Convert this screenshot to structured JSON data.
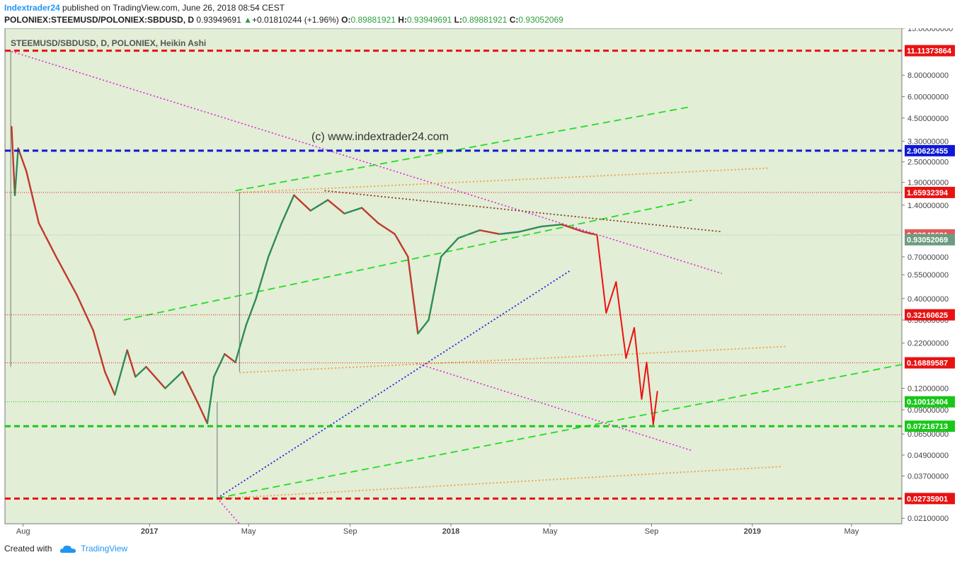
{
  "header": {
    "author": "Indextrader24",
    "published_text": "published on TradingView.com, June 26, 2018 08:54 CEST",
    "symbol": "POLONIEX:STEEMUSD/POLONIEX:SBDUSD, D",
    "last": "0.93949691",
    "change_arrow": "▲",
    "change": "+0.01810244 (+1.96%)",
    "o_label": "O:",
    "o": "0.89881921",
    "h_label": "H:",
    "h": "0.93949691",
    "l_label": "L:",
    "l": "0.89881921",
    "c_label": "C:",
    "c": "0.93052069"
  },
  "footer": {
    "created_with": "Created with",
    "brand": "TradingView"
  },
  "chart_data": {
    "type": "candlestick",
    "title": "STEEMUSD/SBDUSD, D, POLONIEX, Heikin Ashi",
    "watermark": "(c) www.indextrader24.com",
    "y_scale": "log",
    "ylim": [
      0.0195,
      15.0
    ],
    "xlim": [
      "2016-07-10",
      "2019-07-01"
    ],
    "y_ticks": [
      "15.00000000",
      "8.00000000",
      "6.00000000",
      "4.50000000",
      "3.30000000",
      "2.50000000",
      "1.90000000",
      "1.40000000",
      "0.70000000",
      "0.55000000",
      "0.40000000",
      "0.30000000",
      "0.22000000",
      "0.12000000",
      "0.09000000",
      "0.06500000",
      "0.04900000",
      "0.03700000",
      "0.02100000"
    ],
    "x_ticks": [
      {
        "label": "Aug",
        "date": "2016-08-01",
        "bold": false
      },
      {
        "label": "2017",
        "date": "2017-01-01",
        "bold": true
      },
      {
        "label": "May",
        "date": "2017-05-01",
        "bold": false
      },
      {
        "label": "Sep",
        "date": "2017-09-01",
        "bold": false
      },
      {
        "label": "2018",
        "date": "2018-01-01",
        "bold": true
      },
      {
        "label": "May",
        "date": "2018-05-01",
        "bold": false
      },
      {
        "label": "Sep",
        "date": "2018-09-01",
        "bold": false
      },
      {
        "label": "2019",
        "date": "2019-01-01",
        "bold": true
      },
      {
        "label": "May",
        "date": "2019-05-01",
        "bold": false
      }
    ],
    "price_path": [
      [
        "2016-07-18",
        4.0
      ],
      [
        "2016-07-22",
        1.6
      ],
      [
        "2016-07-26",
        3.0
      ],
      [
        "2016-08-05",
        2.2
      ],
      [
        "2016-08-20",
        1.1
      ],
      [
        "2016-09-10",
        0.7
      ],
      [
        "2016-10-05",
        0.42
      ],
      [
        "2016-10-25",
        0.26
      ],
      [
        "2016-11-08",
        0.15
      ],
      [
        "2016-11-20",
        0.11
      ],
      [
        "2016-12-05",
        0.2
      ],
      [
        "2016-12-15",
        0.14
      ],
      [
        "2016-12-28",
        0.16
      ],
      [
        "2017-01-20",
        0.12
      ],
      [
        "2017-02-10",
        0.15
      ],
      [
        "2017-02-28",
        0.1
      ],
      [
        "2017-03-12",
        0.075
      ],
      [
        "2017-03-20",
        0.14
      ],
      [
        "2017-04-02",
        0.19
      ],
      [
        "2017-04-15",
        0.17
      ],
      [
        "2017-04-28",
        0.28
      ],
      [
        "2017-05-10",
        0.4
      ],
      [
        "2017-05-25",
        0.7
      ],
      [
        "2017-06-10",
        1.1
      ],
      [
        "2017-06-25",
        1.6
      ],
      [
        "2017-07-15",
        1.3
      ],
      [
        "2017-08-05",
        1.5
      ],
      [
        "2017-08-25",
        1.25
      ],
      [
        "2017-09-15",
        1.35
      ],
      [
        "2017-10-05",
        1.1
      ],
      [
        "2017-10-25",
        0.95
      ],
      [
        "2017-11-10",
        0.7
      ],
      [
        "2017-11-22",
        0.25
      ],
      [
        "2017-12-05",
        0.3
      ],
      [
        "2017-12-20",
        0.7
      ],
      [
        "2018-01-10",
        0.9
      ],
      [
        "2018-02-05",
        1.0
      ],
      [
        "2018-03-01",
        0.95
      ],
      [
        "2018-03-25",
        0.98
      ],
      [
        "2018-04-20",
        1.05
      ],
      [
        "2018-05-15",
        1.08
      ],
      [
        "2018-06-10",
        0.98
      ],
      [
        "2018-06-26",
        0.94
      ]
    ],
    "price_wicks": [
      {
        "date": "2016-07-17",
        "high": 11.1137,
        "low": 0.16
      },
      {
        "date": "2017-03-24",
        "high": 0.1,
        "low": 0.0274
      },
      {
        "date": "2017-04-20",
        "high": 1.66,
        "low": 0.15
      }
    ],
    "projection_path": [
      [
        "2018-06-27",
        0.93
      ],
      [
        "2018-07-08",
        0.33
      ],
      [
        "2018-07-20",
        0.5
      ],
      [
        "2018-08-01",
        0.18
      ],
      [
        "2018-08-11",
        0.27
      ],
      [
        "2018-08-20",
        0.104
      ],
      [
        "2018-08-26",
        0.17
      ],
      [
        "2018-09-03",
        0.074
      ],
      [
        "2018-09-08",
        0.115
      ]
    ],
    "horizontal_levels": [
      {
        "label": "11.11373864",
        "value": 11.11373864,
        "color": "#e81212",
        "badge": "#e81212",
        "style": "dash-thick"
      },
      {
        "label": "2.90622455",
        "value": 2.90622455,
        "color": "#1018d6",
        "badge": "#1018d6",
        "style": "dash-thick"
      },
      {
        "label": "1.65932394",
        "value": 1.65932394,
        "color": "#e81212",
        "badge": "#e81212",
        "style": "dot-thin"
      },
      {
        "label": "0.93949691",
        "value": 0.93949691,
        "color": "#8fc9a0",
        "badge": "#e05a5a",
        "style": "dot-thin"
      },
      {
        "label": "0.32160625",
        "value": 0.32160625,
        "color": "#e81212",
        "badge": "#e81212",
        "style": "dot-thin"
      },
      {
        "label": "0.16889587",
        "value": 0.16889587,
        "color": "#e81212",
        "badge": "#e81212",
        "style": "dot-thin"
      },
      {
        "label": "0.10012404",
        "value": 0.10012404,
        "color": "#19c719",
        "badge": "#19c719",
        "style": "dot-thin"
      },
      {
        "label": "0.07216713",
        "value": 0.07216713,
        "color": "#19c719",
        "badge": "#19c719",
        "style": "dash-thick"
      },
      {
        "label": "0.02735901",
        "value": 0.02735901,
        "color": "#e81212",
        "badge": "#e81212",
        "style": "dash-thick"
      }
    ],
    "extra_badges": [
      {
        "label": "0.93052069",
        "value": 0.88,
        "color": "#6c9c80"
      }
    ],
    "trendlines": [
      {
        "name": "resistance",
        "color": "#e020e0",
        "style": "dotted",
        "width": 1.6,
        "p1": [
          "2016-07-18",
          11.0
        ],
        "p2": [
          "2018-11-25",
          0.56
        ]
      },
      {
        "name": "lower-channel",
        "color": "#e020e0",
        "style": "dotted",
        "width": 1.6,
        "p1": [
          "2017-11-20",
          0.168
        ],
        "p2": [
          "2018-10-20",
          0.052
        ]
      },
      {
        "name": "pink-stub",
        "color": "#e020e0",
        "style": "dotted",
        "width": 1.6,
        "p1": [
          "2017-03-24",
          0.0275
        ],
        "p2": [
          "2017-04-20",
          0.0195
        ]
      },
      {
        "name": "green-channel-top",
        "color": "#22dd22",
        "style": "dashed",
        "width": 1.8,
        "p1": [
          "2017-04-15",
          1.7
        ],
        "p2": [
          "2018-10-15",
          5.2
        ]
      },
      {
        "name": "green-channel-mid",
        "color": "#22dd22",
        "style": "dashed",
        "width": 1.8,
        "p1": [
          "2016-12-01",
          0.3
        ],
        "p2": [
          "2018-10-20",
          1.5
        ]
      },
      {
        "name": "green-channel-low",
        "color": "#22dd22",
        "style": "dashed",
        "width": 1.8,
        "p1": [
          "2017-03-24",
          0.0275
        ],
        "p2": [
          "2019-07-01",
          0.165
        ]
      },
      {
        "name": "orange-upper",
        "color": "#f0a040",
        "style": "dotted",
        "width": 1.8,
        "p1": [
          "2017-04-20",
          1.66
        ],
        "p2": [
          "2019-01-20",
          2.3
        ]
      },
      {
        "name": "orange-middle",
        "color": "#f0a040",
        "style": "dotted",
        "width": 1.8,
        "p1": [
          "2017-04-20",
          0.148
        ],
        "p2": [
          "2019-02-10",
          0.21
        ]
      },
      {
        "name": "orange-lower",
        "color": "#f0a040",
        "style": "dotted",
        "width": 1.8,
        "p1": [
          "2017-03-24",
          0.0273
        ],
        "p2": [
          "2019-02-05",
          0.042
        ]
      },
      {
        "name": "brown-descending",
        "color": "#8a3a1a",
        "style": "dotted",
        "width": 1.8,
        "p1": [
          "2017-08-01",
          1.7
        ],
        "p2": [
          "2018-11-25",
          0.98
        ]
      },
      {
        "name": "blue-support",
        "color": "#1a20e0",
        "style": "dotted",
        "width": 1.8,
        "p1": [
          "2017-03-24",
          0.0275
        ],
        "p2": [
          "2018-05-25",
          0.58
        ]
      }
    ]
  }
}
